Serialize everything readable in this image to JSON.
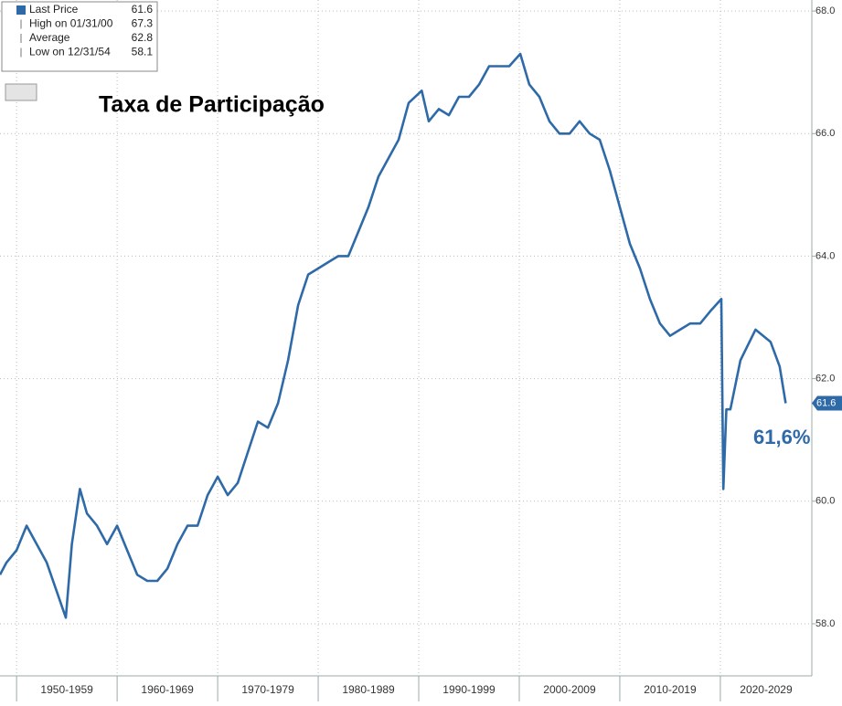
{
  "chart_data": {
    "type": "line",
    "title": "Taxa de Participação",
    "annotation": "61,6%",
    "last_value": 61.6,
    "legend_items": [
      {
        "label": "Last Price",
        "value": 61.6
      },
      {
        "label": "High on 01/31/00",
        "value": 67.3
      },
      {
        "label": "Average",
        "value": 62.8
      },
      {
        "label": "Low on 12/31/54",
        "value": 58.1
      }
    ],
    "x": [
      1948.35,
      1949,
      1950,
      1951,
      1952,
      1953,
      1954.9,
      1955.5,
      1956.3,
      1957,
      1958,
      1959,
      1960,
      1961,
      1962,
      1963,
      1964,
      1965,
      1966,
      1967,
      1968,
      1969,
      1970,
      1971,
      1972,
      1973,
      1974,
      1975,
      1976,
      1977,
      1978,
      1979,
      1980,
      1981,
      1982,
      1983,
      1984,
      1985,
      1986,
      1987,
      1988,
      1989,
      1990.3,
      1991,
      1992,
      1993,
      1994,
      1995,
      1996,
      1997,
      1998,
      1999,
      2000.1,
      2001,
      2002,
      2003,
      2004,
      2005,
      2006,
      2007,
      2008,
      2009,
      2010,
      2011,
      2012,
      2013,
      2014,
      2015,
      2016,
      2017,
      2018,
      2019,
      2020.1,
      2020.3,
      2020.6,
      2021,
      2022,
      2023.5,
      2025,
      2025.9,
      2026.5
    ],
    "series": [
      {
        "name": "Last Price",
        "color": "#2e6aa8",
        "values": [
          58.8,
          59.0,
          59.2,
          59.6,
          59.3,
          59.0,
          58.1,
          59.3,
          60.2,
          59.8,
          59.6,
          59.3,
          59.6,
          59.2,
          58.8,
          58.7,
          58.7,
          58.9,
          59.3,
          59.6,
          59.6,
          60.1,
          60.4,
          60.1,
          60.3,
          60.8,
          61.3,
          61.2,
          61.6,
          62.3,
          63.2,
          63.7,
          63.8,
          63.9,
          64.0,
          64.0,
          64.4,
          64.8,
          65.3,
          65.6,
          65.9,
          66.5,
          66.7,
          66.2,
          66.4,
          66.3,
          66.6,
          66.6,
          66.8,
          67.1,
          67.1,
          67.1,
          67.3,
          66.8,
          66.6,
          66.2,
          66.0,
          66.0,
          66.2,
          66.0,
          65.9,
          65.4,
          64.8,
          64.2,
          63.8,
          63.3,
          62.9,
          62.7,
          62.8,
          62.9,
          62.9,
          63.1,
          63.3,
          60.2,
          61.5,
          61.5,
          62.3,
          62.8,
          62.6,
          62.2,
          61.6
        ]
      }
    ],
    "xlim": [
      1948.35,
      2029.1
    ],
    "xticks": [
      1950,
      1960,
      1970,
      1980,
      1990,
      2000,
      2010,
      2020,
      2030
    ],
    "categories": [
      "1950-1959",
      "1960-1969",
      "1970-1979",
      "1980-1989",
      "1990-1999",
      "2000-2009",
      "2010-2019",
      "2020-2029"
    ],
    "ylim": [
      57.15,
      68.18
    ],
    "yticks": [
      {
        "value": 58,
        "label": "58.0"
      },
      {
        "value": 60,
        "label": "60.0"
      },
      {
        "value": 62,
        "label": "62.0"
      },
      {
        "value": 64,
        "label": "64.0"
      },
      {
        "value": 66,
        "label": "66.0"
      },
      {
        "value": 68,
        "label": "68.0"
      }
    ],
    "grid": true
  }
}
